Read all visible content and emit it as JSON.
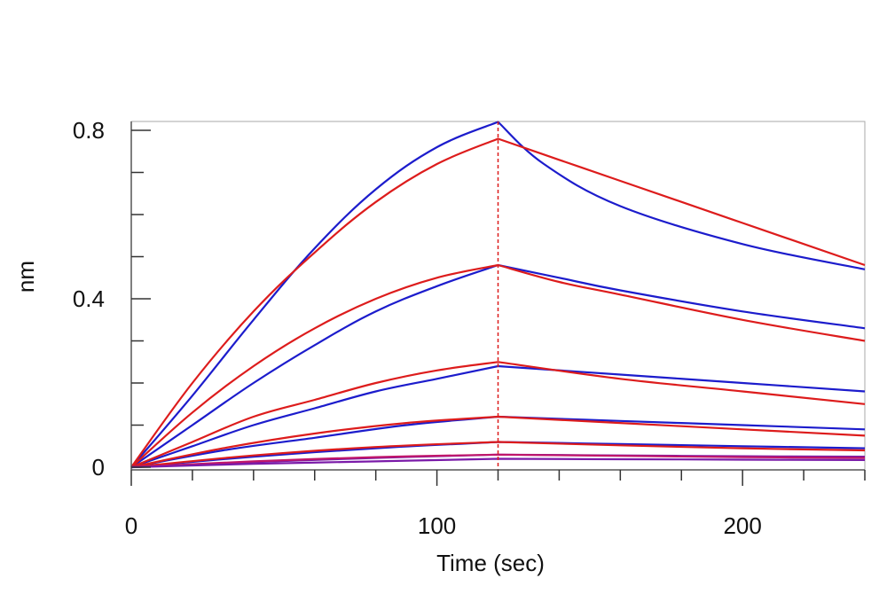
{
  "chart_data": {
    "type": "line",
    "xlabel": "Time (sec)",
    "ylabel": "nm",
    "xlim": [
      0,
      240
    ],
    "ylim": [
      0,
      0.82
    ],
    "x_ticks": [
      0,
      100,
      200
    ],
    "y_ticks": [
      0,
      0.4,
      0.8
    ],
    "x_tick_labels": [
      "0",
      "100",
      "200"
    ],
    "y_tick_labels": [
      "0",
      "0.4",
      "0.8"
    ],
    "association_end": 120,
    "grid": false,
    "legend": "none",
    "colors": {
      "measured": "#1c1ccc",
      "fit": "#dd1c1c",
      "marker": "#dd1c1c",
      "axis": "#555555",
      "frame": "#aaaaaa"
    },
    "series": [
      {
        "role": "measured",
        "color": "#1c1ccc",
        "x": [
          0,
          20,
          40,
          60,
          80,
          100,
          120,
          135,
          160,
          200,
          240
        ],
        "y": [
          0,
          0.17,
          0.35,
          0.52,
          0.66,
          0.76,
          0.82,
          0.72,
          0.62,
          0.53,
          0.47
        ]
      },
      {
        "role": "fit",
        "color": "#dd1c1c",
        "x": [
          0,
          20,
          40,
          60,
          80,
          100,
          120,
          140,
          160,
          200,
          240
        ],
        "y": [
          0,
          0.2,
          0.37,
          0.51,
          0.63,
          0.72,
          0.78,
          0.73,
          0.68,
          0.58,
          0.48
        ]
      },
      {
        "role": "measured",
        "color": "#1c1ccc",
        "x": [
          0,
          20,
          40,
          60,
          80,
          100,
          120,
          140,
          160,
          200,
          240
        ],
        "y": [
          0,
          0.1,
          0.2,
          0.29,
          0.37,
          0.43,
          0.48,
          0.45,
          0.42,
          0.37,
          0.33
        ]
      },
      {
        "role": "fit",
        "color": "#dd1c1c",
        "x": [
          0,
          20,
          40,
          60,
          80,
          100,
          120,
          140,
          160,
          200,
          240
        ],
        "y": [
          0,
          0.13,
          0.24,
          0.33,
          0.4,
          0.45,
          0.48,
          0.44,
          0.41,
          0.35,
          0.3
        ]
      },
      {
        "role": "measured",
        "color": "#1c1ccc",
        "x": [
          0,
          20,
          40,
          60,
          80,
          100,
          120,
          160,
          200,
          240
        ],
        "y": [
          0,
          0.05,
          0.1,
          0.14,
          0.18,
          0.21,
          0.24,
          0.22,
          0.2,
          0.18
        ]
      },
      {
        "role": "fit",
        "color": "#dd1c1c",
        "x": [
          0,
          20,
          40,
          60,
          80,
          100,
          120,
          160,
          200,
          240
        ],
        "y": [
          0,
          0.06,
          0.12,
          0.16,
          0.2,
          0.23,
          0.25,
          0.21,
          0.18,
          0.15
        ]
      },
      {
        "role": "measured",
        "color": "#1c1ccc",
        "x": [
          0,
          30,
          60,
          90,
          120,
          160,
          200,
          240
        ],
        "y": [
          0,
          0.04,
          0.07,
          0.1,
          0.12,
          0.11,
          0.1,
          0.09
        ]
      },
      {
        "role": "fit",
        "color": "#dd1c1c",
        "x": [
          0,
          30,
          60,
          90,
          120,
          160,
          200,
          240
        ],
        "y": [
          0,
          0.045,
          0.08,
          0.105,
          0.12,
          0.105,
          0.09,
          0.075
        ]
      },
      {
        "role": "measured",
        "color": "#1c1ccc",
        "x": [
          0,
          40,
          80,
          120,
          160,
          200,
          240
        ],
        "y": [
          0,
          0.025,
          0.045,
          0.06,
          0.055,
          0.05,
          0.045
        ]
      },
      {
        "role": "fit",
        "color": "#dd1c1c",
        "x": [
          0,
          40,
          80,
          120,
          160,
          200,
          240
        ],
        "y": [
          0,
          0.028,
          0.048,
          0.06,
          0.052,
          0.045,
          0.04
        ]
      },
      {
        "role": "measured",
        "color": "#7a1aa8",
        "x": [
          0,
          40,
          80,
          120,
          160,
          200,
          240
        ],
        "y": [
          0,
          0.012,
          0.022,
          0.03,
          0.028,
          0.026,
          0.025
        ]
      },
      {
        "role": "fit",
        "color": "#c0166a",
        "x": [
          0,
          40,
          80,
          120,
          160,
          200,
          240
        ],
        "y": [
          0,
          0.014,
          0.024,
          0.03,
          0.027,
          0.024,
          0.022
        ]
      },
      {
        "role": "measured",
        "color": "#7a1aa8",
        "x": [
          0,
          40,
          80,
          120,
          160,
          200,
          240
        ],
        "y": [
          0,
          0.008,
          0.014,
          0.02,
          0.019,
          0.018,
          0.017
        ]
      }
    ]
  }
}
